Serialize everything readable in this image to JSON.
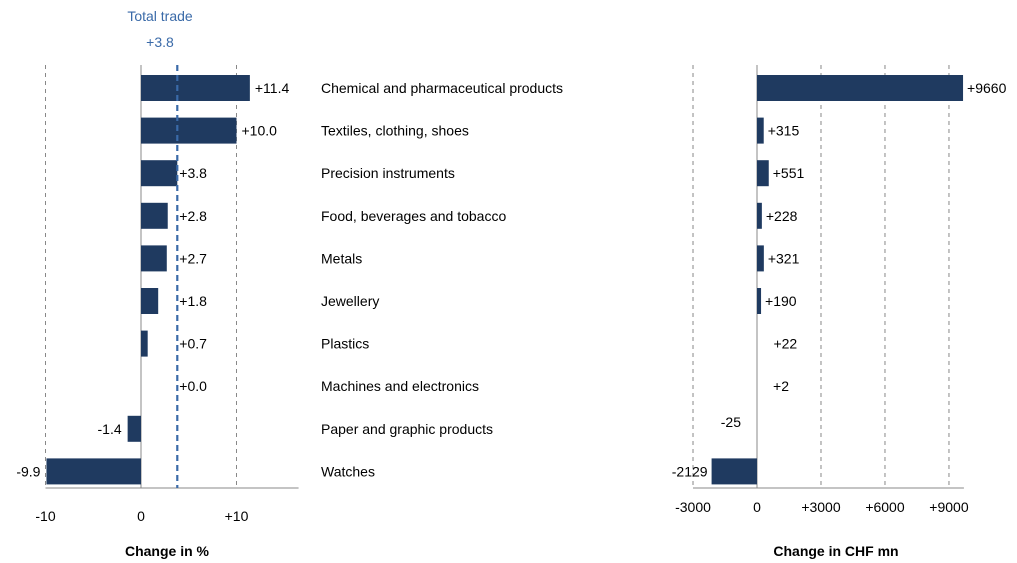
{
  "chart_data": [
    {
      "type": "bar",
      "orientation": "horizontal",
      "categories": [
        "Chemical and pharmaceutical products",
        "Textiles, clothing, shoes",
        "Precision instruments",
        "Food, beverages and tobacco",
        "Metals",
        "Jewellery",
        "Plastics",
        "Machines and electronics",
        "Paper and graphic products",
        "Watches"
      ],
      "values": [
        11.4,
        10.0,
        3.8,
        2.8,
        2.7,
        1.8,
        0.7,
        0.0,
        -1.4,
        -9.9
      ],
      "value_labels": [
        "+11.4",
        "+10.0",
        "+3.8",
        "+2.8",
        "+2.7",
        "+1.8",
        "+0.7",
        "+0.0",
        "-1.4",
        "-9.9"
      ],
      "xlabel": "Change in %",
      "xlim": [
        -10,
        16.5
      ],
      "ticks": [
        -10,
        0,
        10
      ],
      "tick_labels": [
        "-10",
        "0",
        "+10"
      ],
      "grid": true,
      "reference_line": {
        "value": 3.8,
        "label": "Total trade",
        "value_label": "+3.8",
        "color": "#3a6aa8"
      },
      "bar_color": "#1f3a60"
    },
    {
      "type": "bar",
      "orientation": "horizontal",
      "categories": [
        "Chemical and pharmaceutical products",
        "Textiles, clothing, shoes",
        "Precision instruments",
        "Food, beverages and tobacco",
        "Metals",
        "Jewellery",
        "Plastics",
        "Machines and electronics",
        "Paper and graphic products",
        "Watches"
      ],
      "values": [
        9660,
        315,
        551,
        228,
        321,
        190,
        22,
        2,
        -25,
        -2129
      ],
      "value_labels": [
        "+9660",
        "+315",
        "+551",
        "+228",
        "+321",
        "+190",
        "+22",
        "+2",
        "-25",
        "-2129"
      ],
      "xlabel": "Change in CHF mn",
      "xlim": [
        -3000,
        9700
      ],
      "ticks": [
        -3000,
        0,
        3000,
        6000,
        9000
      ],
      "tick_labels": [
        "-3000",
        "0",
        "+3000",
        "+6000",
        "+9000"
      ],
      "grid": true,
      "bar_color": "#1f3a60"
    }
  ]
}
